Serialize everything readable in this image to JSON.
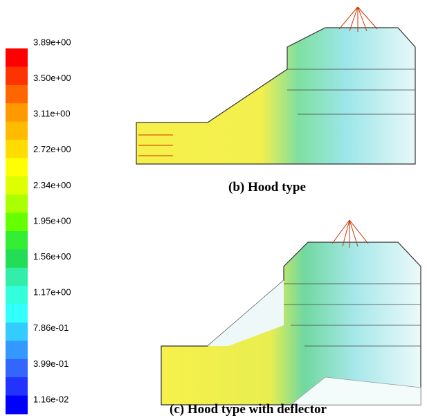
{
  "colorbar": {
    "labels": [
      "3.89e+00",
      "3.50e+00",
      "3.11e+00",
      "2.72e+00",
      "2.34e+00",
      "1.95e+00",
      "1.56e+00",
      "1.17e+00",
      "7.86e-01",
      "3.99e-01",
      "1.16e-02"
    ],
    "colors": [
      "#ff0000",
      "#ff3300",
      "#ff6600",
      "#ff9900",
      "#ffbb00",
      "#ffdd00",
      "#ffff00",
      "#ddff00",
      "#aaff00",
      "#66ff00",
      "#33ee33",
      "#22dd55",
      "#33eeaa",
      "#33ffdd",
      "#33ffff",
      "#33ccff",
      "#3399ff",
      "#3366ff",
      "#2233ff",
      "#0000ff"
    ]
  },
  "captions": {
    "b": "(b) Hood type",
    "c": "(c) Hood type with deflector"
  }
}
